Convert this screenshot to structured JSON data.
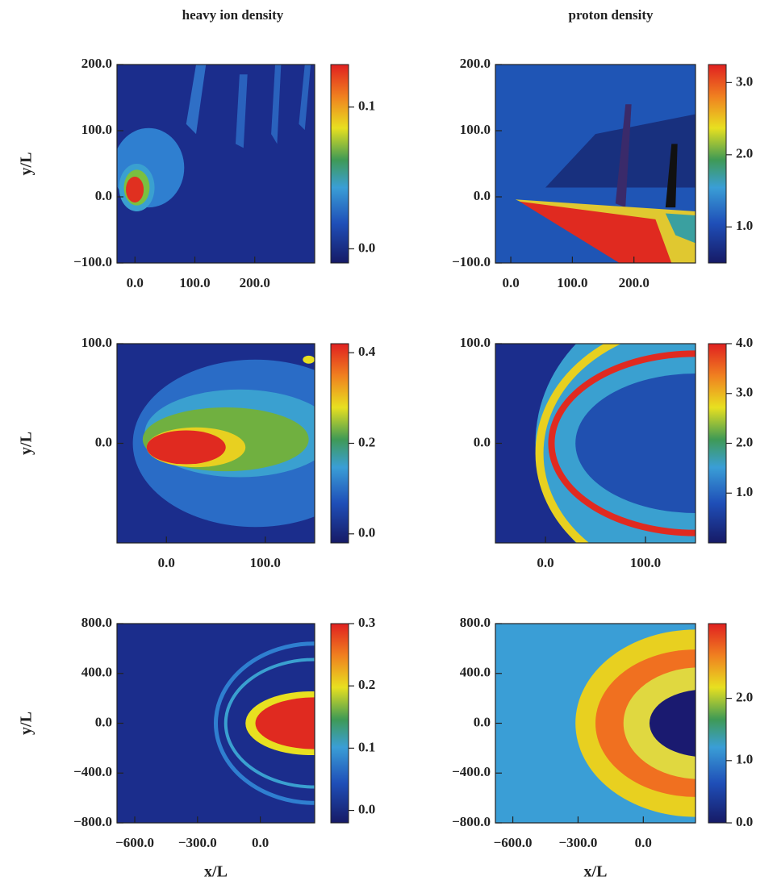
{
  "chart_data": [
    {
      "type": "heatmap",
      "title": "heavy ion density",
      "ylabel": "y/L",
      "xlim": [
        -30,
        300
      ],
      "ylim": [
        -100,
        200
      ],
      "xticks": [
        {
          "value": 0,
          "label": "0.0"
        },
        {
          "value": 100,
          "label": "100.0"
        },
        {
          "value": 200,
          "label": "200.0"
        }
      ],
      "yticks": [
        {
          "value": -100,
          "label": "−100.0"
        },
        {
          "value": 0,
          "label": "0.0"
        },
        {
          "value": 100,
          "label": "100.0"
        },
        {
          "value": 200,
          "label": "200.0"
        }
      ],
      "clim": [
        -0.01,
        0.13
      ],
      "cticks": [
        {
          "value": 0,
          "label": "0.0"
        },
        {
          "value": 0.1,
          "label": "0.1"
        }
      ]
    },
    {
      "type": "heatmap",
      "title": "proton density",
      "xlim": [
        -25,
        300
      ],
      "ylim": [
        -100,
        200
      ],
      "xticks": [
        {
          "value": 0,
          "label": "0.0"
        },
        {
          "value": 100,
          "label": "100.0"
        },
        {
          "value": 200,
          "label": "200.0"
        }
      ],
      "yticks": [
        {
          "value": -100,
          "label": "−100.0"
        },
        {
          "value": 0,
          "label": "0.0"
        },
        {
          "value": 100,
          "label": "100.0"
        },
        {
          "value": 200,
          "label": "200.0"
        }
      ],
      "clim": [
        0.5,
        3.25
      ],
      "cticks": [
        {
          "value": 1,
          "label": "1.0"
        },
        {
          "value": 2,
          "label": "2.0"
        },
        {
          "value": 3,
          "label": "3.0"
        }
      ]
    },
    {
      "type": "heatmap",
      "ylabel": "y/L",
      "xlim": [
        -50,
        150
      ],
      "ylim": [
        -100,
        100
      ],
      "xticks": [
        {
          "value": 0,
          "label": "0.0"
        },
        {
          "value": 100,
          "label": "100.0"
        }
      ],
      "yticks": [
        {
          "value": 0,
          "label": "0.0"
        },
        {
          "value": 100,
          "label": "100.0"
        }
      ],
      "clim": [
        -0.02,
        0.42
      ],
      "cticks": [
        {
          "value": 0,
          "label": "0.0"
        },
        {
          "value": 0.2,
          "label": "0.2"
        },
        {
          "value": 0.4,
          "label": "0.4"
        }
      ]
    },
    {
      "type": "heatmap",
      "xlim": [
        -50,
        150
      ],
      "ylim": [
        -100,
        100
      ],
      "xticks": [
        {
          "value": 0,
          "label": "0.0"
        },
        {
          "value": 100,
          "label": "100.0"
        }
      ],
      "yticks": [
        {
          "value": 0,
          "label": "0.0"
        },
        {
          "value": 100,
          "label": "100.0"
        }
      ],
      "clim": [
        0,
        4
      ],
      "cticks": [
        {
          "value": 1,
          "label": "1.0"
        },
        {
          "value": 2,
          "label": "2.0"
        },
        {
          "value": 3,
          "label": "3.0"
        },
        {
          "value": 4,
          "label": "4.0"
        }
      ]
    },
    {
      "type": "heatmap",
      "ylabel": "y/L",
      "xlabel": "x/L",
      "xlim": [
        -685,
        260
      ],
      "ylim": [
        -800,
        800
      ],
      "xticks": [
        {
          "value": -600,
          "label": "−600.0"
        },
        {
          "value": -300,
          "label": "−300.0"
        },
        {
          "value": 0,
          "label": "0.0"
        }
      ],
      "yticks": [
        {
          "value": -800,
          "label": "−800.0"
        },
        {
          "value": -400,
          "label": "−400.0"
        },
        {
          "value": 0,
          "label": "0.0"
        },
        {
          "value": 400,
          "label": "400.0"
        },
        {
          "value": 800,
          "label": "800.0"
        }
      ],
      "clim": [
        -0.02,
        0.3
      ],
      "cticks": [
        {
          "value": 0,
          "label": "0.0"
        },
        {
          "value": 0.1,
          "label": "0.1"
        },
        {
          "value": 0.2,
          "label": "0.2"
        },
        {
          "value": 0.3,
          "label": "0.3"
        }
      ]
    },
    {
      "type": "heatmap",
      "xlabel": "x/L",
      "xlim": [
        -680,
        240
      ],
      "ylim": [
        -800,
        800
      ],
      "xticks": [
        {
          "value": -600,
          "label": "−600.0"
        },
        {
          "value": -300,
          "label": "−300.0"
        },
        {
          "value": 0,
          "label": "0.0"
        }
      ],
      "yticks": [
        {
          "value": -800,
          "label": "−800.0"
        },
        {
          "value": -400,
          "label": "−400.0"
        },
        {
          "value": 0,
          "label": "0.0"
        },
        {
          "value": 400,
          "label": "400.0"
        },
        {
          "value": 800,
          "label": "800.0"
        }
      ],
      "clim": [
        0,
        3.2
      ],
      "cticks": [
        {
          "value": 0,
          "label": "0.0"
        },
        {
          "value": 1,
          "label": "1.0"
        },
        {
          "value": 2,
          "label": "2.0"
        }
      ]
    }
  ]
}
